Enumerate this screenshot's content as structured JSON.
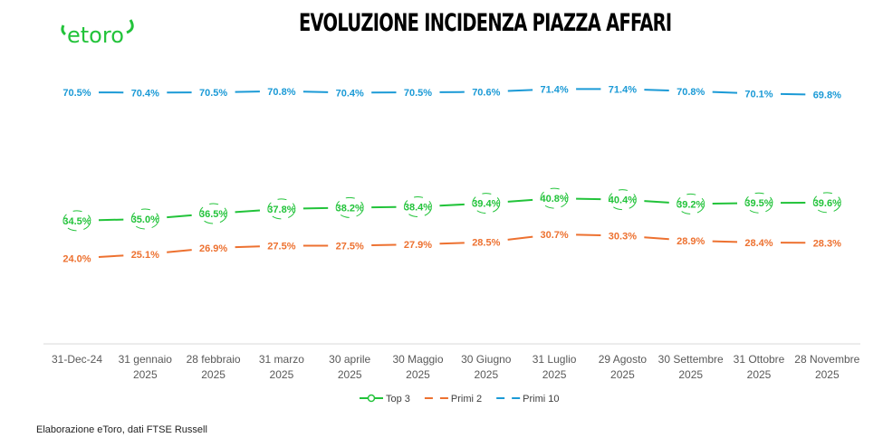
{
  "logo_text": "etoro",
  "footer": "Elaborazione eToro, dati FTSE Russell",
  "colors": {
    "top3": "#22c33a",
    "primi2": "#ed7130",
    "primi10": "#1b9ad6",
    "brand": "#22c33a"
  },
  "chart_data": {
    "type": "line",
    "title": "EVOLUZIONE INCIDENZA PIAZZA AFFARI",
    "categories": [
      [
        "31-Dec-24",
        ""
      ],
      [
        "31 gennaio",
        "2025"
      ],
      [
        "28 febbraio",
        "2025"
      ],
      [
        "31 marzo",
        "2025"
      ],
      [
        "30 aprile",
        "2025"
      ],
      [
        "30 Maggio",
        "2025"
      ],
      [
        "30 Giugno",
        "2025"
      ],
      [
        "31 Luglio",
        "2025"
      ],
      [
        "29 Agosto",
        "2025"
      ],
      [
        "30 Settembre",
        "2025"
      ],
      [
        "31 Ottobre",
        "2025"
      ],
      [
        "28 Novembre",
        "2025"
      ]
    ],
    "ylim": [
      0,
      80
    ],
    "legend_position": "bottom",
    "series": [
      {
        "name": "Top 3",
        "key": "top3",
        "values": [
          34.5,
          35.0,
          36.5,
          37.8,
          38.2,
          38.4,
          39.4,
          40.8,
          40.4,
          39.2,
          39.5,
          39.6
        ]
      },
      {
        "name": "Primi 2",
        "key": "primi2",
        "values": [
          24.0,
          25.1,
          26.9,
          27.5,
          27.5,
          27.9,
          28.5,
          30.7,
          30.3,
          28.9,
          28.4,
          28.3
        ]
      },
      {
        "name": "Primi 10",
        "key": "primi10",
        "values": [
          70.5,
          70.4,
          70.5,
          70.8,
          70.4,
          70.5,
          70.6,
          71.4,
          71.4,
          70.8,
          70.1,
          69.8
        ]
      }
    ]
  }
}
